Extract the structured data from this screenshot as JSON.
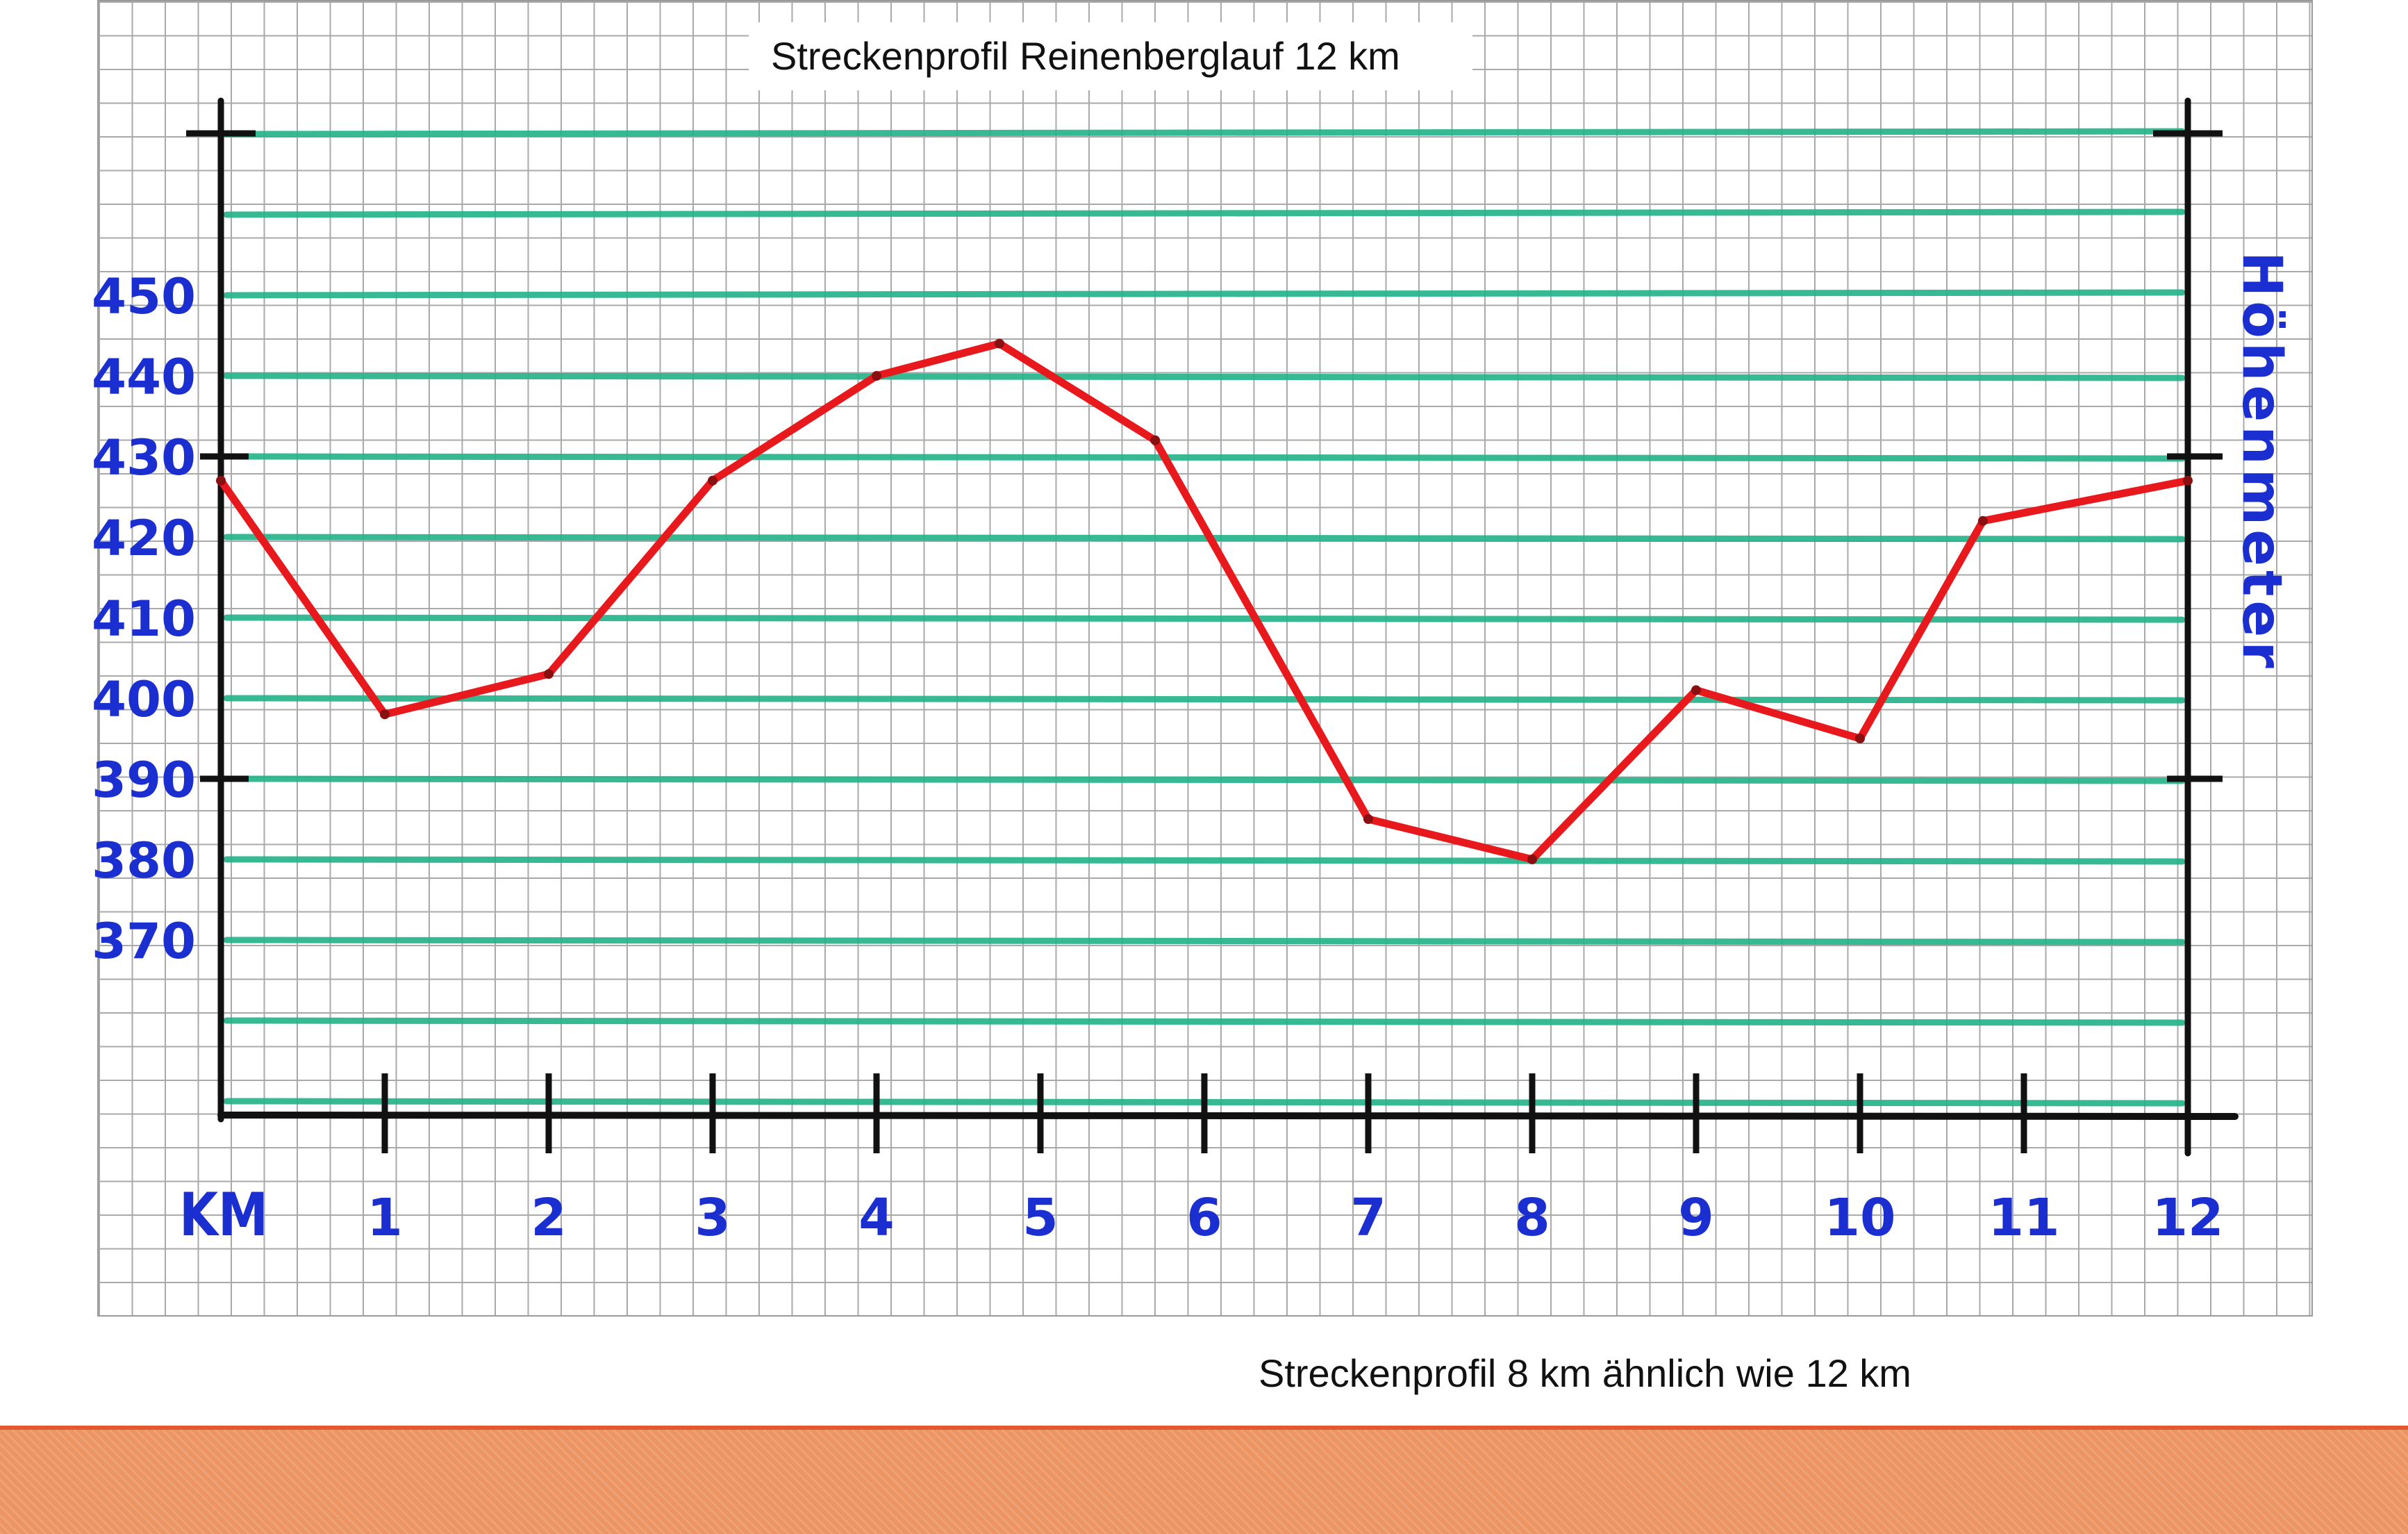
{
  "chart_data": {
    "type": "line",
    "title": "Streckenprofil Reinenberglauf 12 km",
    "note": "Streckenprofil 8 km ähnlich wie 12 km",
    "xlabel": "KM",
    "ylabel": "Höhenmeter",
    "xlim": [
      0,
      12
    ],
    "ylim": [
      360,
      460
    ],
    "x_ticks": [
      "1",
      "2",
      "3",
      "4",
      "5",
      "6",
      "7",
      "8",
      "9",
      "10",
      "11",
      "12"
    ],
    "y_ticks": [
      "450",
      "440",
      "430",
      "420",
      "410",
      "400",
      "390",
      "380",
      "370"
    ],
    "grid": true,
    "series": [
      {
        "points": [
          {
            "x": 0,
            "y": 427
          },
          {
            "x": 1,
            "y": 398
          },
          {
            "x": 2,
            "y": 403
          },
          {
            "x": 3,
            "y": 427
          },
          {
            "x": 4,
            "y": 440
          },
          {
            "x": 4.75,
            "y": 444
          },
          {
            "x": 5.7,
            "y": 432
          },
          {
            "x": 7,
            "y": 385
          },
          {
            "x": 8,
            "y": 380
          },
          {
            "x": 9,
            "y": 401
          },
          {
            "x": 10,
            "y": 395
          },
          {
            "x": 10.75,
            "y": 422
          },
          {
            "x": 12,
            "y": 427
          }
        ]
      }
    ],
    "colors": {
      "line": "#e8191d",
      "gridlines": "#22b389",
      "axes": "#111111",
      "labels": "#1b2fd0"
    }
  },
  "colors": {
    "bottom_stripe": "#ec9562",
    "stripe_edge": "#e4582f"
  }
}
